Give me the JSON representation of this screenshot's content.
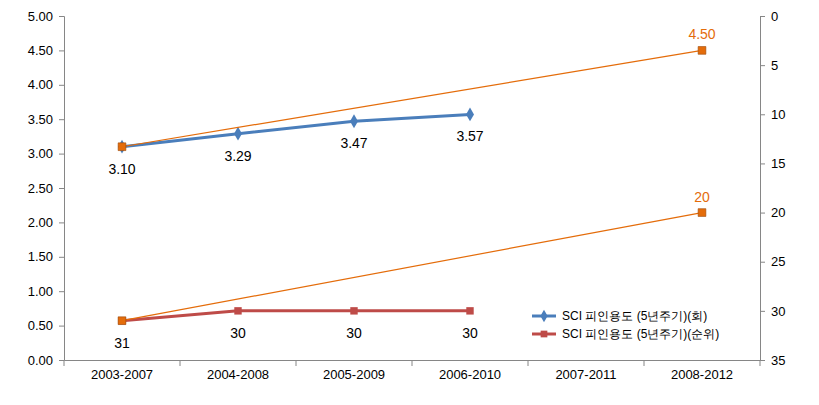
{
  "chart_data": {
    "type": "line",
    "categories": [
      "2003-2007",
      "2004-2008",
      "2005-2009",
      "2006-2010",
      "2007-2011",
      "2008-2012"
    ],
    "ylim": [
      0,
      5
    ],
    "yticks": [
      {
        "value": 0,
        "label": "0.00"
      },
      {
        "value": 0.5,
        "label": "0.50"
      },
      {
        "value": 1,
        "label": "1.00"
      },
      {
        "value": 1.5,
        "label": "1.50"
      },
      {
        "value": 2,
        "label": "2.00"
      },
      {
        "value": 2.5,
        "label": "2.50"
      },
      {
        "value": 3,
        "label": "3.00"
      },
      {
        "value": 3.5,
        "label": "3.50"
      },
      {
        "value": 4,
        "label": "4.00"
      },
      {
        "value": 4.5,
        "label": "4.50"
      },
      {
        "value": 5,
        "label": "5.00"
      }
    ],
    "y2lim": [
      35,
      0
    ],
    "y2ticks": [
      0,
      5,
      10,
      15,
      20,
      25,
      30,
      35
    ],
    "grid": false,
    "legend": "lower right",
    "data_labels": true,
    "series": [
      {
        "name": "SCI 피인용도 (5년주기)(회)",
        "color": "#4a7ebb",
        "marker": "diamond",
        "values": [
          3.1,
          3.29,
          3.47,
          3.57,
          null,
          null
        ],
        "value_labels": [
          "3.10",
          "3.29",
          "3.47",
          "3.57",
          null,
          null
        ]
      },
      {
        "name": "SCI 피인용도 (5년주기)(순위)",
        "color": "#be4b48",
        "marker": "square",
        "axis": "y2",
        "values": [
          31,
          30,
          30,
          30,
          null,
          null
        ]
      },
      {
        "color": "#e46c0a",
        "marker": "square",
        "x": [
          "2003-2007",
          "2008-2012"
        ],
        "values": [
          3.1,
          4.5
        ],
        "value_labels": [
          null,
          "4.50"
        ]
      },
      {
        "color": "#e46c0a",
        "marker": "square",
        "axis": "y2",
        "x": [
          "2003-2007",
          "2008-2012"
        ],
        "values": [
          31,
          20
        ],
        "value_labels": [
          null,
          "20"
        ]
      }
    ]
  }
}
